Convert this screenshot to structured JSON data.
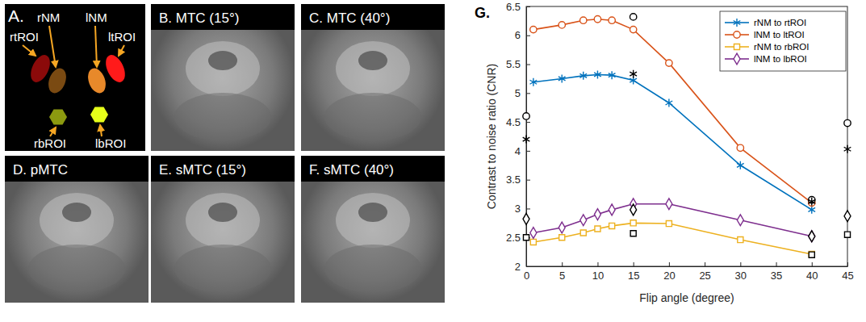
{
  "panel_a": {
    "title": "A.",
    "labels": [
      "rNM",
      "lNM",
      "rtROI",
      "ltROI",
      "rbROI",
      "lbROI"
    ]
  },
  "image_panels": [
    {
      "title": "B. MTC (15°)"
    },
    {
      "title": "C. MTC (40°)"
    },
    {
      "title": "D. pMTC"
    },
    {
      "title": "E. sMTC (15°)"
    },
    {
      "title": "F. sMTC (40°)"
    }
  ],
  "chart_data": {
    "type": "line",
    "title": "G.",
    "x_label": "Flip angle (degree)",
    "y_label": "Contrast to noise ratio (CNR)",
    "xlim": [
      0,
      45
    ],
    "xticks": [
      0,
      5,
      10,
      15,
      20,
      25,
      30,
      35,
      40,
      45
    ],
    "ylim": [
      2,
      6.5
    ],
    "yticks": [
      2,
      2.5,
      3,
      3.5,
      4,
      4.5,
      5,
      5.5,
      6,
      6.5
    ],
    "legend": "northeast",
    "series": [
      {
        "name": "rNM to rtROI",
        "type": "line",
        "color": "#0072bd",
        "marker": "star",
        "line_style": "solid",
        "x": [
          1,
          5,
          8,
          10,
          12,
          15,
          20,
          30,
          40
        ],
        "values": [
          5.19,
          5.25,
          5.3,
          5.32,
          5.31,
          5.22,
          4.83,
          3.75,
          2.98
        ]
      },
      {
        "name": "lNM to ltROI",
        "type": "line",
        "color": "#d95319",
        "marker": "circle",
        "line_style": "solid",
        "x": [
          1,
          5,
          8,
          10,
          12,
          15,
          20,
          30,
          40
        ],
        "values": [
          6.1,
          6.18,
          6.26,
          6.28,
          6.26,
          6.1,
          5.52,
          4.05,
          3.1
        ]
      },
      {
        "name": "rNM to rbROI",
        "type": "line",
        "color": "#edb120",
        "marker": "square",
        "line_style": "solid",
        "x": [
          1,
          5,
          8,
          10,
          12,
          15,
          20,
          30,
          40
        ],
        "values": [
          2.42,
          2.5,
          2.58,
          2.65,
          2.7,
          2.75,
          2.74,
          2.46,
          2.21
        ]
      },
      {
        "name": "lNM to lbROI",
        "type": "line",
        "color": "#7e2f8e",
        "marker": "diamond",
        "line_style": "solid",
        "x": [
          1,
          5,
          8,
          10,
          12,
          15,
          20,
          30,
          40
        ],
        "values": [
          2.58,
          2.67,
          2.8,
          2.9,
          2.98,
          3.08,
          3.08,
          2.8,
          2.52
        ]
      },
      {
        "type": "scatter",
        "color": "#000000",
        "marker": "circle",
        "x": [
          0,
          15,
          40,
          45
        ],
        "values": [
          4.6,
          6.32,
          3.15,
          4.48
        ]
      },
      {
        "type": "scatter",
        "color": "#000000",
        "marker": "star",
        "x": [
          0,
          15,
          40,
          45
        ],
        "values": [
          4.2,
          5.33,
          3.12,
          4.03
        ]
      },
      {
        "type": "scatter",
        "color": "#000000",
        "marker": "diamond",
        "x": [
          0,
          15,
          40,
          45
        ],
        "values": [
          2.82,
          2.98,
          2.52,
          2.87
        ]
      },
      {
        "type": "scatter",
        "color": "#000000",
        "marker": "square",
        "x": [
          0,
          15,
          40,
          45
        ],
        "values": [
          2.5,
          2.57,
          2.2,
          2.55
        ]
      }
    ]
  }
}
